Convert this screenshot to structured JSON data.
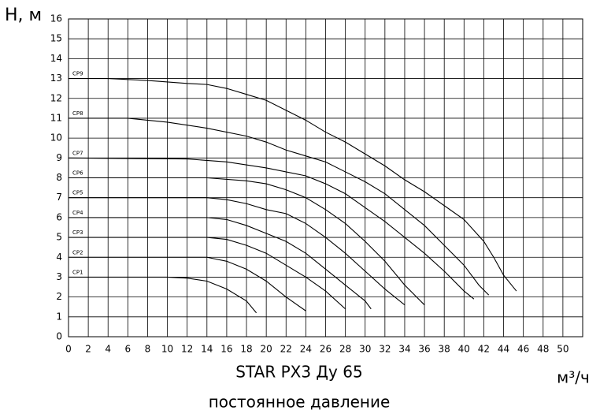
{
  "chart_data": {
    "type": "line",
    "title": "STAR PX3 Ду 65",
    "subtitle": "постоянное давление",
    "y_label": "H, м",
    "x_label": "м³/ч",
    "xlim": [
      0,
      52
    ],
    "ylim": [
      0,
      16
    ],
    "xticks": [
      0,
      2,
      4,
      6,
      8,
      10,
      12,
      14,
      16,
      18,
      20,
      22,
      24,
      26,
      28,
      30,
      32,
      34,
      36,
      38,
      40,
      42,
      44,
      46,
      48,
      50
    ],
    "yticks": [
      0,
      1,
      2,
      3,
      4,
      5,
      6,
      7,
      8,
      9,
      10,
      11,
      12,
      13,
      14,
      15,
      16
    ],
    "grid": true,
    "series": [
      {
        "name": "CP1",
        "color": "#000000",
        "x": [
          0,
          10,
          12,
          14,
          16,
          18,
          19
        ],
        "values": [
          3,
          3,
          2.95,
          2.8,
          2.4,
          1.8,
          1.2
        ]
      },
      {
        "name": "CP2",
        "color": "#000000",
        "x": [
          0,
          14,
          16,
          18,
          20,
          22,
          24
        ],
        "values": [
          4,
          4,
          3.8,
          3.4,
          2.8,
          2.0,
          1.3
        ]
      },
      {
        "name": "CP3",
        "color": "#000000",
        "x": [
          0,
          14,
          16,
          18,
          20,
          22,
          24,
          26,
          28
        ],
        "values": [
          5,
          5,
          4.9,
          4.6,
          4.2,
          3.6,
          3.0,
          2.3,
          1.4
        ]
      },
      {
        "name": "CP4",
        "color": "#000000",
        "x": [
          0,
          14,
          16,
          18,
          20,
          22,
          24,
          26,
          28,
          30,
          30.6
        ],
        "values": [
          6,
          6,
          5.9,
          5.6,
          5.2,
          4.8,
          4.2,
          3.4,
          2.6,
          1.8,
          1.4
        ]
      },
      {
        "name": "CP5",
        "color": "#000000",
        "x": [
          0,
          14,
          16,
          18,
          20,
          22,
          24,
          26,
          28,
          30,
          32,
          34
        ],
        "values": [
          7,
          7,
          6.9,
          6.7,
          6.4,
          6.2,
          5.7,
          5.0,
          4.2,
          3.3,
          2.4,
          1.6
        ]
      },
      {
        "name": "CP6",
        "color": "#000000",
        "x": [
          0,
          14,
          18,
          20,
          22,
          24,
          26,
          28,
          30,
          32,
          34,
          36
        ],
        "values": [
          8,
          8,
          7.85,
          7.7,
          7.4,
          7.0,
          6.4,
          5.7,
          4.8,
          3.8,
          2.6,
          1.6
        ]
      },
      {
        "name": "CP7",
        "color": "#000000",
        "x": [
          0,
          12,
          16,
          20,
          24,
          26,
          28,
          30,
          32,
          34,
          36,
          38,
          40,
          41
        ],
        "values": [
          9,
          8.95,
          8.8,
          8.5,
          8.1,
          7.7,
          7.2,
          6.5,
          5.8,
          5.0,
          4.2,
          3.3,
          2.3,
          1.9
        ]
      },
      {
        "name": "CP8",
        "color": "#000000",
        "x": [
          0,
          6,
          10,
          14,
          18,
          20,
          22,
          24,
          26,
          28,
          30,
          32,
          34,
          36,
          38,
          40,
          41.5,
          42.5
        ],
        "values": [
          11,
          11,
          10.8,
          10.5,
          10.1,
          9.8,
          9.4,
          9.1,
          8.8,
          8.3,
          7.8,
          7.2,
          6.4,
          5.6,
          4.6,
          3.6,
          2.6,
          2.1
        ]
      },
      {
        "name": "CP9",
        "color": "#000000",
        "x": [
          0,
          4,
          8,
          12,
          14,
          16,
          18,
          20,
          22,
          24,
          26,
          28,
          30,
          32,
          34,
          36,
          38,
          40,
          42,
          43,
          44,
          45.3
        ],
        "values": [
          13,
          13,
          12.9,
          12.75,
          12.7,
          12.5,
          12.2,
          11.9,
          11.4,
          10.9,
          10.3,
          9.8,
          9.2,
          8.6,
          7.9,
          7.3,
          6.6,
          5.9,
          4.8,
          4.0,
          3.1,
          2.3
        ]
      }
    ]
  }
}
